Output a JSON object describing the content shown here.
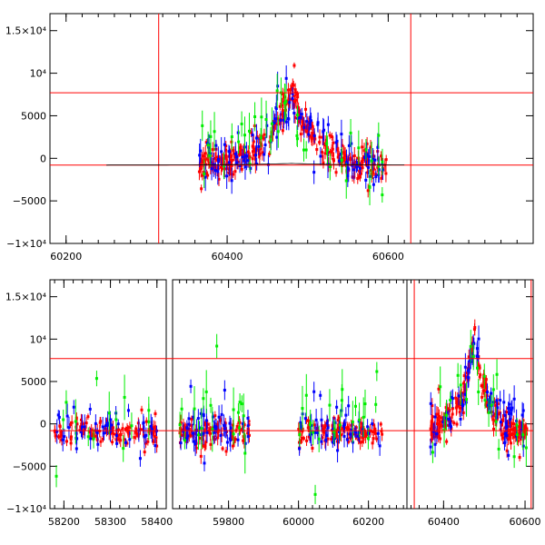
{
  "chart_data": [
    {
      "type": "scatter",
      "panel": "top",
      "x_range": [
        60180,
        60780
      ],
      "ylim": [
        -10000,
        17000
      ],
      "xticks": [
        {
          "v": 60200,
          "label": "60200"
        },
        {
          "v": 60400,
          "label": "60400"
        },
        {
          "v": 60600,
          "label": "60600"
        }
      ],
      "yticks": [
        {
          "v": -10000,
          "label": "−1×10⁴"
        },
        {
          "v": -5000,
          "label": "−5000"
        },
        {
          "v": 0,
          "label": "0"
        },
        {
          "v": 5000,
          "label": "5000"
        },
        {
          "v": 10000,
          "label": "10⁴"
        },
        {
          "v": 15000,
          "label": "1.5×10⁴"
        }
      ],
      "hlines": [
        7700,
        -800
      ],
      "vlines": [
        60315,
        60628
      ],
      "series": [
        {
          "color": "#ff0000",
          "ranges": [
            [
              60365,
              60598
            ]
          ],
          "shape": "flare",
          "baseline": -900,
          "amp": 8600,
          "peak": 60480,
          "width": 40,
          "noise": 1400,
          "n": 320
        },
        {
          "color": "#0000ff",
          "ranges": [
            [
              60365,
              60598
            ]
          ],
          "shape": "flare",
          "baseline": -600,
          "amp": 7800,
          "peak": 60480,
          "width": 42,
          "noise": 2300,
          "n": 110
        },
        {
          "color": "#00ee00",
          "ranges": [
            [
              60365,
              60598
            ]
          ],
          "shape": "flare",
          "baseline": -300,
          "amp": 7000,
          "peak": 60470,
          "width": 45,
          "noise": 3200,
          "n": 45
        }
      ]
    },
    {
      "type": "scatter",
      "panel": "bottom",
      "segments": [
        {
          "x_range": [
            58170,
            58420
          ],
          "xticks": [
            {
              "v": 58200,
              "label": "58200"
            },
            {
              "v": 58300,
              "label": "58300"
            },
            {
              "v": 58400,
              "label": "58400"
            }
          ]
        },
        {
          "x_range": [
            59640,
            60310
          ],
          "xticks": [
            {
              "v": 59800,
              "label": "59800"
            },
            {
              "v": 60000,
              "label": "60000"
            },
            {
              "v": 60200,
              "label": "60200"
            }
          ]
        },
        {
          "x_range": [
            60310,
            60620
          ],
          "xticks": [
            {
              "v": 60400,
              "label": "60400"
            },
            {
              "v": 60600,
              "label": "60600"
            }
          ]
        }
      ],
      "ylim": [
        -10000,
        17000
      ],
      "yticks": [
        {
          "v": -10000,
          "label": "−1×10⁴"
        },
        {
          "v": -5000,
          "label": "−5000"
        },
        {
          "v": 0,
          "label": "0"
        },
        {
          "v": 5000,
          "label": "5000"
        },
        {
          "v": 10000,
          "label": "10⁴"
        },
        {
          "v": 15000,
          "label": "1.5×10⁴"
        }
      ],
      "hlines": [
        7700,
        -800
      ],
      "vlines": [
        60328,
        60615
      ],
      "series": [
        {
          "color": "#ff0000",
          "ranges": [
            [
              58180,
              58400
            ],
            [
              59660,
              59860
            ],
            [
              60000,
              60240
            ]
          ],
          "shape": "flat",
          "baseline": -1000,
          "noise": 1200,
          "n": 330
        },
        {
          "color": "#0000ff",
          "ranges": [
            [
              58180,
              58400
            ],
            [
              59660,
              59860
            ],
            [
              60000,
              60240
            ]
          ],
          "shape": "flat",
          "baseline": -600,
          "noise": 2000,
          "n": 140
        },
        {
          "color": "#00ee00",
          "ranges": [
            [
              58180,
              58400
            ],
            [
              59660,
              59860
            ],
            [
              60000,
              60240
            ]
          ],
          "shape": "flat",
          "baseline": 600,
          "noise": 3600,
          "n": 55
        },
        {
          "color": "#ff0000",
          "ranges": [
            [
              60365,
              60605
            ]
          ],
          "shape": "flare",
          "baseline": -1000,
          "amp": 11500,
          "peak": 60475,
          "width": 40,
          "noise": 1300,
          "n": 230
        },
        {
          "color": "#0000ff",
          "ranges": [
            [
              60365,
              60605
            ]
          ],
          "shape": "flare",
          "baseline": -700,
          "amp": 10500,
          "peak": 60478,
          "width": 42,
          "noise": 2200,
          "n": 70
        },
        {
          "color": "#00ee00",
          "ranges": [
            [
              60365,
              60605
            ]
          ],
          "shape": "flare",
          "baseline": -300,
          "amp": 9500,
          "peak": 60470,
          "width": 45,
          "noise": 3200,
          "n": 25
        }
      ]
    }
  ]
}
